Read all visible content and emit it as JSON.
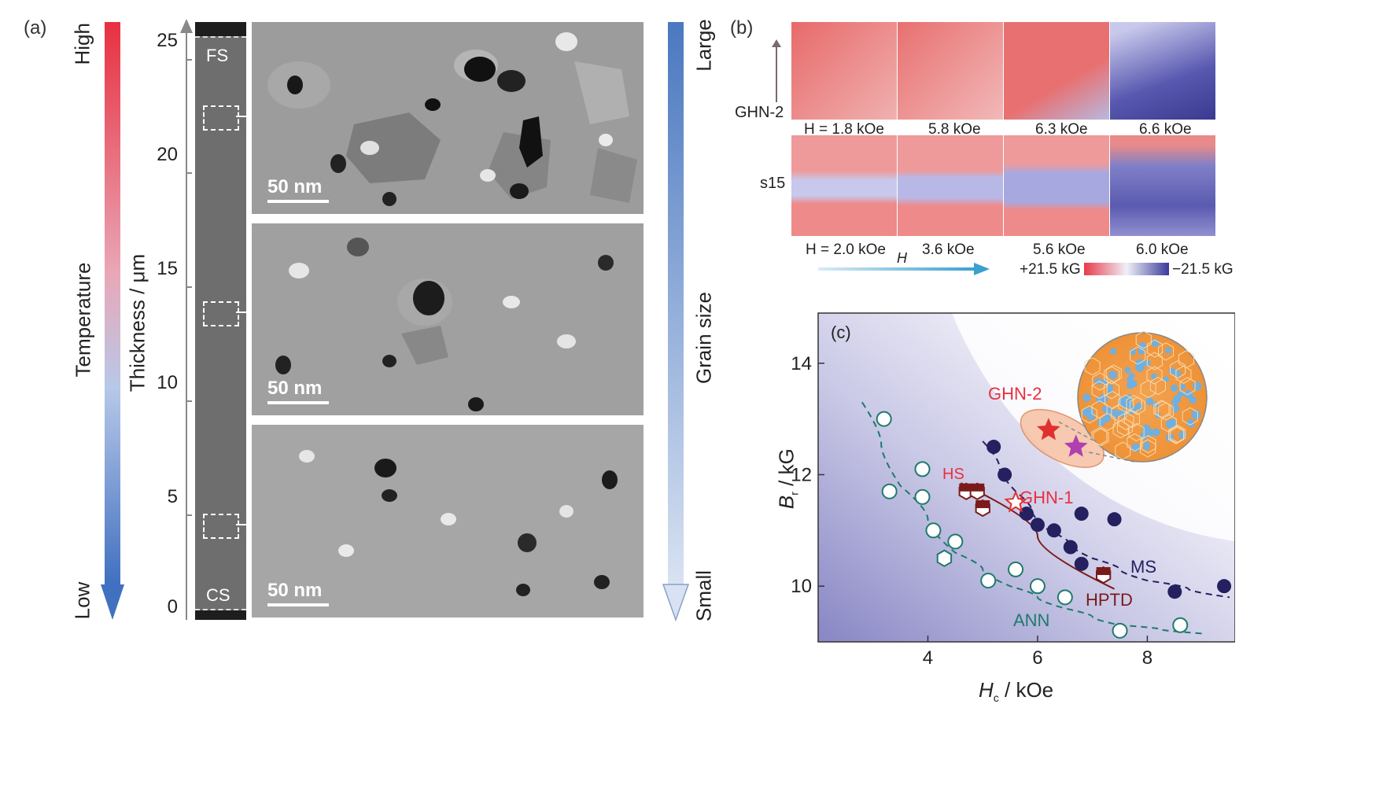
{
  "panel_a": {
    "label": "(a)",
    "temperature": {
      "title": "Temperature",
      "high": "High",
      "low": "Low"
    },
    "thickness_axis": {
      "title": "Thickness / μm",
      "ticks": [
        "25",
        "20",
        "15",
        "10",
        "5",
        "0"
      ]
    },
    "film": {
      "top_label": "FS",
      "bottom_label": "CS"
    },
    "images": [
      {
        "scale_bar": "50 nm"
      },
      {
        "scale_bar": "50 nm"
      },
      {
        "scale_bar": "50 nm"
      }
    ],
    "grain_size": {
      "title": "Grain size",
      "large": "Large",
      "small": "Small"
    }
  },
  "panel_b": {
    "label": "(b)",
    "row1": {
      "sample": "GHN-2",
      "fields": [
        "H = 1.8 kOe",
        "5.8 kOe",
        "6.3 kOe",
        "6.6 kOe"
      ]
    },
    "row2": {
      "sample": "s15",
      "fields": [
        "H = 2.0 kOe",
        "3.6 kOe",
        "5.6 kOe",
        "6.0 kOe"
      ]
    },
    "field_arrow_label": "H",
    "colorbar": {
      "max": "+21.5 kG",
      "min": "−21.5 kG"
    }
  },
  "panel_c": {
    "label": "(c)",
    "xlabel": "H",
    "xlabel_sub": "c",
    "xlabel_unit": " / kOe",
    "ylabel": "B",
    "ylabel_sub": "r",
    "ylabel_unit": " / kG",
    "annotations": {
      "ghn2": "GHN-2",
      "ghn1": "GHN-1",
      "hs": "HS",
      "ms": "MS",
      "hptd": "HPTD",
      "ann": "ANN"
    }
  },
  "chart_data": {
    "type": "scatter",
    "title": "",
    "xlabel": "Hc / kOe",
    "ylabel": "Br / kG",
    "xlim": [
      2.0,
      9.6
    ],
    "ylim": [
      9.0,
      14.9
    ],
    "xticks": [
      4,
      6,
      8
    ],
    "yticks": [
      10,
      12,
      14
    ],
    "series": [
      {
        "name": "ANN",
        "marker": "open-circle",
        "color": "#1f7a6b",
        "points": [
          [
            3.2,
            13.0
          ],
          [
            3.3,
            11.7
          ],
          [
            3.9,
            12.1
          ],
          [
            3.9,
            11.6
          ],
          [
            4.1,
            11.0
          ],
          [
            4.5,
            10.8
          ],
          [
            5.1,
            10.1
          ],
          [
            5.6,
            10.3
          ],
          [
            6.0,
            10.0
          ],
          [
            6.5,
            9.8
          ],
          [
            7.5,
            9.2
          ],
          [
            8.6,
            9.3
          ]
        ]
      },
      {
        "name": "",
        "marker": "open-hexagon",
        "color": "#1f7a6b",
        "points": [
          [
            4.3,
            10.5
          ]
        ]
      },
      {
        "name": "MS",
        "marker": "filled-circle",
        "color": "#252060",
        "points": [
          [
            5.2,
            12.5
          ],
          [
            5.4,
            12.0
          ],
          [
            5.8,
            11.3
          ],
          [
            6.0,
            11.1
          ],
          [
            6.3,
            11.0
          ],
          [
            6.6,
            10.7
          ],
          [
            6.8,
            10.4
          ],
          [
            6.8,
            11.3
          ],
          [
            7.4,
            11.2
          ],
          [
            8.5,
            9.9
          ],
          [
            9.4,
            10.0
          ]
        ]
      },
      {
        "name": "HPTD",
        "marker": "half-hexagon",
        "color": "#7a1a1a",
        "points": [
          [
            4.7,
            11.7
          ],
          [
            4.9,
            11.7
          ],
          [
            5.0,
            11.4
          ],
          [
            7.2,
            10.2
          ]
        ]
      },
      {
        "name": "GHN-1",
        "marker": "open-star",
        "color": "#e03030",
        "points": [
          [
            5.6,
            11.5
          ]
        ]
      },
      {
        "name": "GHN-2",
        "marker": "filled-star",
        "color": "#e03030",
        "points": [
          [
            6.2,
            12.8
          ]
        ]
      },
      {
        "name": "",
        "marker": "filled-star",
        "color": "#b040b0",
        "points": [
          [
            6.7,
            12.5
          ]
        ]
      }
    ],
    "fits": [
      {
        "name": "ANN",
        "style": "dashed",
        "color": "#1f7a6b",
        "points": [
          [
            2.8,
            13.3
          ],
          [
            3.5,
            11.8
          ],
          [
            4.5,
            10.6
          ],
          [
            5.5,
            10.0
          ],
          [
            6.5,
            9.6
          ],
          [
            7.5,
            9.3
          ],
          [
            9.0,
            9.15
          ]
        ]
      },
      {
        "name": "MS",
        "style": "dashed",
        "color": "#252060",
        "points": [
          [
            5.0,
            12.6
          ],
          [
            5.6,
            11.7
          ],
          [
            6.2,
            11.0
          ],
          [
            7.0,
            10.5
          ],
          [
            8.0,
            10.1
          ],
          [
            9.5,
            9.8
          ]
        ]
      },
      {
        "name": "HPTD",
        "style": "solid",
        "color": "#7a1a1a",
        "points": [
          [
            4.6,
            11.85
          ],
          [
            7.4,
            9.95
          ]
        ]
      }
    ]
  }
}
